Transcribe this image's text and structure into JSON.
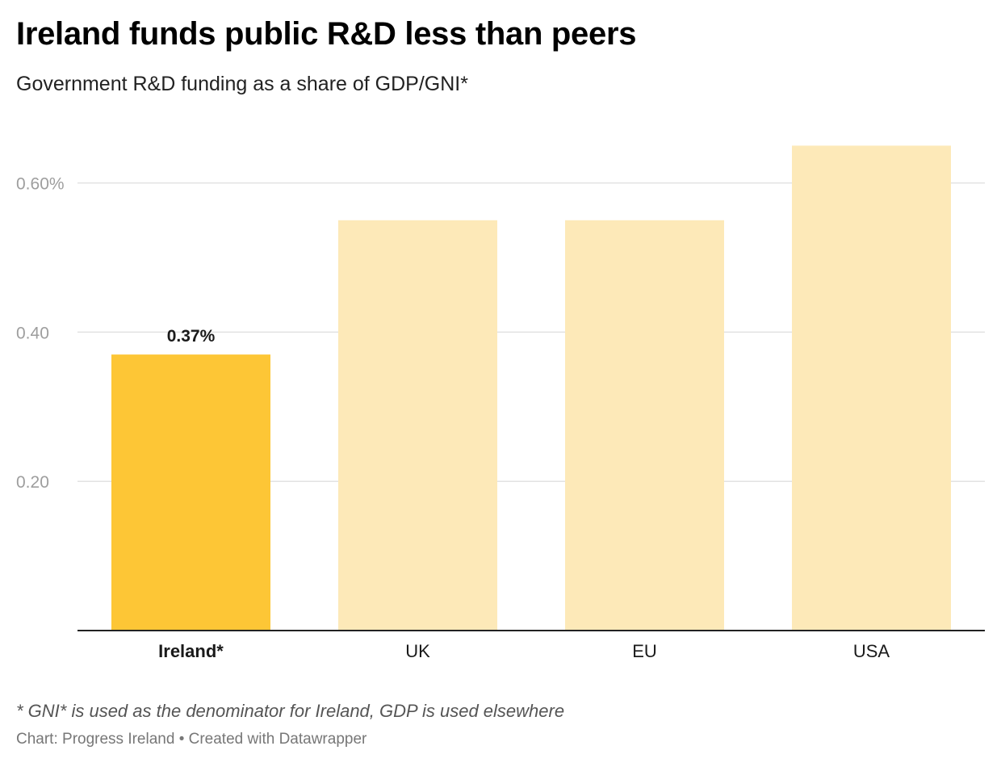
{
  "chart_data": {
    "type": "bar",
    "title": "Ireland funds public R&D less than peers",
    "subtitle": "Government R&D funding as a share of GDP/GNI*",
    "categories": [
      "Ireland*",
      "UK",
      "EU",
      "USA"
    ],
    "values": [
      0.37,
      0.55,
      0.55,
      0.65
    ],
    "highlight_category": "Ireland*",
    "data_labels": [
      {
        "category": "Ireland*",
        "text": "0.37%"
      }
    ],
    "yticks": [
      {
        "value": 0.2,
        "label": "0.20"
      },
      {
        "value": 0.4,
        "label": "0.40"
      },
      {
        "value": 0.6,
        "label": "0.60%"
      }
    ],
    "ylim": [
      0,
      0.6
    ],
    "xlabel": "",
    "ylabel": "",
    "grid": true,
    "colors": {
      "highlight": "#fdc636",
      "bar": "#fde9b8",
      "grid": "#e2e2e2",
      "axis": "#222222"
    }
  },
  "footer": {
    "note": "* GNI* is used as the denominator for Ireland, GDP is used elsewhere",
    "source": "Chart: Progress Ireland • Created with Datawrapper"
  }
}
